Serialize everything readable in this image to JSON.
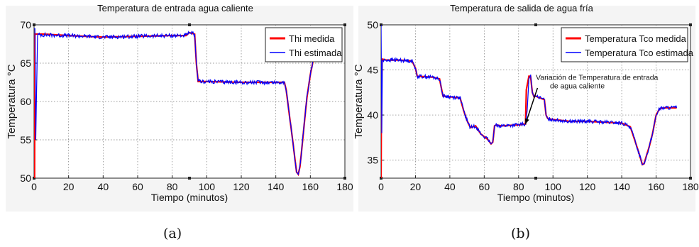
{
  "captions": {
    "a": "(a)",
    "b": "(b)"
  },
  "chart_data": [
    {
      "type": "line",
      "title": "Temperatura de entrada agua caliente",
      "xlabel": "Tiempo (minutos)",
      "ylabel": "Temperatura °C",
      "xlim": [
        0,
        180
      ],
      "ylim": [
        50,
        70
      ],
      "xticks": [
        0,
        20,
        40,
        60,
        80,
        100,
        120,
        140,
        160,
        180
      ],
      "yticks": [
        50,
        55,
        60,
        65,
        70
      ],
      "grid": true,
      "legend_position": "top-right",
      "series": [
        {
          "name": "Thi medida",
          "color": "#ff0000",
          "x": [
            0,
            0.3,
            0.5,
            5,
            20,
            40,
            60,
            80,
            88,
            90,
            91,
            93,
            94,
            95,
            100,
            120,
            140,
            145,
            146,
            148,
            150,
            152,
            153,
            154,
            156,
            158,
            160,
            162,
            164,
            166,
            168,
            170,
            172
          ],
          "y": [
            50,
            50,
            68.8,
            68.8,
            68.6,
            68.4,
            68.5,
            68.6,
            68.6,
            69.0,
            68.9,
            68.8,
            65.0,
            62.6,
            62.6,
            62.5,
            62.5,
            62.5,
            61.5,
            58.0,
            54.5,
            50.8,
            50.5,
            51.5,
            56.0,
            60.5,
            63.5,
            65.8,
            66.5,
            66.6,
            66.7,
            66.8,
            66.8
          ]
        },
        {
          "name": "Thi estimada",
          "color": "#0000ff",
          "x": [
            0,
            0.5,
            1,
            2,
            5,
            20,
            40,
            60,
            80,
            88,
            90,
            91,
            93,
            94,
            95,
            100,
            120,
            140,
            145,
            146,
            148,
            150,
            152,
            153,
            154,
            156,
            158,
            160,
            162,
            164,
            166,
            168,
            170,
            172
          ],
          "y": [
            69.5,
            69.5,
            55.0,
            68.7,
            68.7,
            68.6,
            68.4,
            68.5,
            68.6,
            68.6,
            69.0,
            68.9,
            68.8,
            65.0,
            62.6,
            62.6,
            62.5,
            62.5,
            62.5,
            61.5,
            58.0,
            54.5,
            50.8,
            50.5,
            51.5,
            56.0,
            60.5,
            63.5,
            65.8,
            66.5,
            66.6,
            66.7,
            66.8,
            66.8
          ],
          "noise": 0.25
        }
      ]
    },
    {
      "type": "line",
      "title": "Temperatura de salida de agua fría",
      "xlabel": "Tiempo (minutos)",
      "ylabel": "Temperatura °C",
      "xlim": [
        0,
        180
      ],
      "ylim": [
        33,
        50
      ],
      "xticks": [
        0,
        20,
        40,
        60,
        80,
        100,
        120,
        140,
        160,
        180
      ],
      "yticks": [
        35,
        40,
        45,
        50
      ],
      "grid": true,
      "legend_position": "top-right",
      "annotation": {
        "text_line1": "Variación de Temperatura de entrada",
        "text_line2": "de agua caliente",
        "arrow_from": [
          91,
          43.0
        ],
        "arrow_to": [
          84,
          39.0
        ],
        "text_anchor": [
          90,
          43.9
        ]
      },
      "series": [
        {
          "name": "Temperatura Tco medida",
          "color": "#ff0000",
          "x": [
            0,
            0.3,
            0.6,
            3,
            10,
            18,
            20,
            21,
            30,
            34,
            36,
            46,
            48,
            50,
            52,
            55,
            58,
            60,
            62,
            64,
            65,
            66,
            67,
            70,
            80,
            83,
            84,
            84.5,
            86,
            87,
            88,
            89,
            90,
            91,
            95,
            96,
            97,
            100,
            110,
            120,
            130,
            140,
            145,
            150,
            152,
            153,
            156,
            158,
            160,
            162,
            165,
            170,
            172
          ],
          "y": [
            33,
            46.0,
            46.2,
            46.1,
            46.1,
            46.0,
            45.2,
            44.3,
            44.2,
            44.0,
            42.1,
            41.9,
            40.5,
            39.4,
            38.6,
            38.8,
            37.9,
            37.6,
            37.3,
            36.8,
            37.0,
            38.8,
            38.9,
            38.8,
            38.9,
            39.0,
            39.0,
            42.8,
            44.3,
            44.3,
            42.5,
            42.0,
            42.1,
            42.0,
            41.7,
            40.0,
            39.6,
            39.5,
            39.3,
            39.3,
            39.2,
            39.1,
            38.7,
            35.8,
            34.5,
            34.6,
            36.5,
            38.0,
            40.0,
            40.7,
            40.8,
            40.8,
            40.8
          ]
        },
        {
          "name": "Temperatura Tco estimada",
          "color": "#0000ff",
          "x": [
            0,
            0.4,
            0.8,
            3,
            10,
            18,
            20,
            21,
            30,
            34,
            36,
            46,
            48,
            50,
            52,
            55,
            58,
            60,
            62,
            64,
            65,
            66,
            67,
            70,
            80,
            84,
            85,
            86,
            87,
            88,
            89,
            90,
            91,
            95,
            96,
            97,
            100,
            110,
            120,
            130,
            140,
            145,
            150,
            152,
            153,
            156,
            158,
            160,
            162,
            165,
            170,
            172
          ],
          "y": [
            50,
            38.0,
            46.0,
            46.1,
            46.1,
            46.0,
            45.2,
            44.3,
            44.2,
            44.0,
            42.1,
            41.9,
            40.5,
            39.4,
            38.6,
            38.8,
            37.9,
            37.6,
            37.3,
            36.8,
            37.0,
            38.8,
            38.9,
            38.8,
            38.9,
            39.0,
            40.5,
            44.0,
            44.4,
            42.5,
            42.0,
            42.1,
            42.0,
            41.7,
            40.0,
            39.6,
            39.5,
            39.3,
            39.3,
            39.2,
            39.1,
            38.7,
            35.8,
            34.5,
            34.6,
            36.5,
            38.0,
            40.0,
            40.7,
            40.8,
            40.8,
            40.8
          ],
          "noise": 0.2
        }
      ]
    }
  ]
}
